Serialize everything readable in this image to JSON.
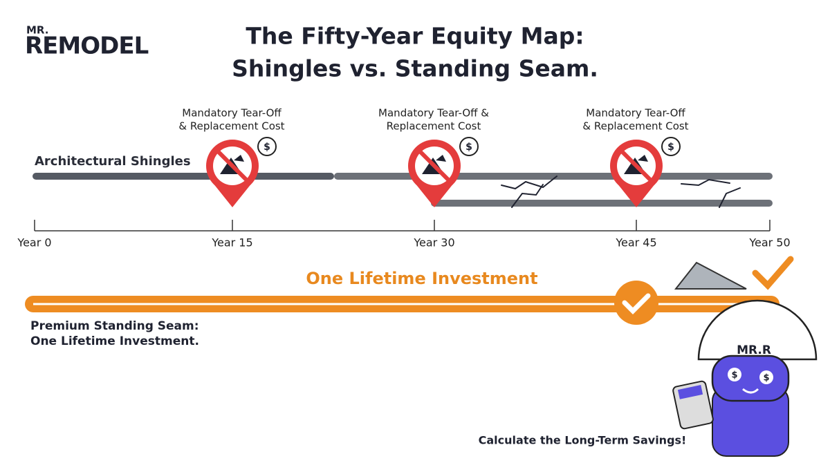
{
  "logo": {
    "top": "MR.",
    "main": "REMODEL"
  },
  "title": {
    "line1": "The Fifty-Year Equity Map:",
    "line2": "Shingles vs. Standing Seam."
  },
  "shingles": {
    "label": "Architectural Shingles"
  },
  "markers": [
    {
      "lines": [
        "Mandatory Tear-Off",
        "& Replacement Cost"
      ],
      "cost_icon": "$"
    },
    {
      "lines": [
        "Mandatory Tear-Off &",
        "Replacement Cost"
      ],
      "cost_icon": "$"
    },
    {
      "lines": [
        "Mandatory Tear-Off",
        "& Replacement Cost"
      ],
      "cost_icon": "$"
    }
  ],
  "timeline": [
    "Year 0",
    "Year 15",
    "Year 30",
    "Year 45",
    "Year 50"
  ],
  "seam": {
    "heading": "One Lifetime Investment",
    "label_lines": [
      "Premium Standing Seam:",
      "One Lifetime Investment."
    ]
  },
  "mascot": {
    "helmet": "MR.R",
    "eyes": [
      "$",
      "$"
    ]
  },
  "cta": "Calculate the Long-Term Savings!"
}
